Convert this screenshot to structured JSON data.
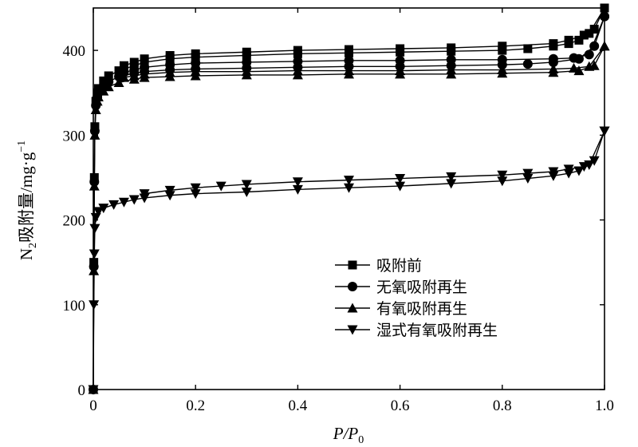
{
  "chart_data": {
    "type": "line",
    "title": "",
    "xlabel": "P/P",
    "xlabel_sub": "0",
    "ylabel": "N",
    "ylabel_sub": "2",
    "ylabel_rest": "吸附量/mg·g",
    "ylabel_sup": "−1",
    "xlim": [
      0,
      1.0
    ],
    "ylim": [
      0,
      450
    ],
    "xticks": [
      0,
      0.2,
      0.4,
      0.6,
      0.8,
      1.0
    ],
    "xtick_labels": [
      "0",
      "0.2",
      "0.4",
      "0.6",
      "0.8",
      "1.0"
    ],
    "yticks": [
      0,
      100,
      200,
      300,
      400
    ],
    "ytick_labels": [
      "0",
      "100",
      "200",
      "300",
      "400"
    ],
    "grid": false,
    "legend_position": "lower-right",
    "series": [
      {
        "name": "吸附前",
        "marker": "square",
        "adsorption": [
          [
            0.0,
            0
          ],
          [
            0.001,
            150
          ],
          [
            0.002,
            250
          ],
          [
            0.003,
            310
          ],
          [
            0.005,
            340
          ],
          [
            0.008,
            350
          ],
          [
            0.01,
            355
          ],
          [
            0.02,
            364
          ],
          [
            0.03,
            370
          ],
          [
            0.05,
            376
          ],
          [
            0.08,
            382
          ],
          [
            0.1,
            386
          ],
          [
            0.15,
            390
          ],
          [
            0.2,
            392
          ],
          [
            0.3,
            394
          ],
          [
            0.4,
            396
          ],
          [
            0.5,
            397
          ],
          [
            0.6,
            398
          ],
          [
            0.7,
            399
          ],
          [
            0.8,
            400
          ],
          [
            0.85,
            402
          ],
          [
            0.9,
            405
          ],
          [
            0.93,
            408
          ],
          [
            0.95,
            412
          ],
          [
            0.97,
            420
          ],
          [
            1.0,
            450
          ]
        ],
        "desorption": [
          [
            1.0,
            450
          ],
          [
            0.98,
            425
          ],
          [
            0.96,
            418
          ],
          [
            0.93,
            412
          ],
          [
            0.9,
            408
          ],
          [
            0.8,
            405
          ],
          [
            0.7,
            403
          ],
          [
            0.6,
            402
          ],
          [
            0.5,
            401
          ],
          [
            0.4,
            400
          ],
          [
            0.3,
            398
          ],
          [
            0.2,
            396
          ],
          [
            0.15,
            394
          ],
          [
            0.1,
            390
          ],
          [
            0.08,
            386
          ],
          [
            0.06,
            382
          ]
        ]
      },
      {
        "name": "无氧吸附再生",
        "marker": "circle",
        "adsorption": [
          [
            0.0,
            0
          ],
          [
            0.001,
            145
          ],
          [
            0.002,
            245
          ],
          [
            0.003,
            305
          ],
          [
            0.005,
            335
          ],
          [
            0.008,
            345
          ],
          [
            0.01,
            350
          ],
          [
            0.02,
            358
          ],
          [
            0.03,
            363
          ],
          [
            0.05,
            369
          ],
          [
            0.08,
            373
          ],
          [
            0.1,
            375
          ],
          [
            0.15,
            377
          ],
          [
            0.2,
            378
          ],
          [
            0.3,
            379
          ],
          [
            0.4,
            380
          ],
          [
            0.5,
            381
          ],
          [
            0.6,
            381
          ],
          [
            0.7,
            382
          ],
          [
            0.8,
            383
          ],
          [
            0.85,
            384
          ],
          [
            0.9,
            386
          ],
          [
            0.95,
            390
          ],
          [
            0.98,
            405
          ],
          [
            1.0,
            440
          ]
        ],
        "desorption": [
          [
            1.0,
            440
          ],
          [
            0.97,
            395
          ],
          [
            0.94,
            391
          ],
          [
            0.9,
            390
          ],
          [
            0.8,
            389
          ],
          [
            0.7,
            389
          ],
          [
            0.6,
            388
          ],
          [
            0.5,
            388
          ],
          [
            0.4,
            387
          ],
          [
            0.3,
            386
          ],
          [
            0.2,
            385
          ],
          [
            0.15,
            383
          ],
          [
            0.1,
            380
          ],
          [
            0.08,
            377
          ],
          [
            0.06,
            374
          ]
        ]
      },
      {
        "name": "有氧吸附再生",
        "marker": "triangle-up",
        "adsorption": [
          [
            0.0,
            0
          ],
          [
            0.001,
            140
          ],
          [
            0.002,
            240
          ],
          [
            0.003,
            300
          ],
          [
            0.005,
            330
          ],
          [
            0.008,
            340
          ],
          [
            0.01,
            345
          ],
          [
            0.02,
            352
          ],
          [
            0.03,
            357
          ],
          [
            0.05,
            362
          ],
          [
            0.08,
            366
          ],
          [
            0.1,
            368
          ],
          [
            0.15,
            369
          ],
          [
            0.2,
            370
          ],
          [
            0.3,
            371
          ],
          [
            0.4,
            371
          ],
          [
            0.5,
            372
          ],
          [
            0.6,
            372
          ],
          [
            0.7,
            372
          ],
          [
            0.8,
            373
          ],
          [
            0.9,
            374
          ],
          [
            0.95,
            376
          ],
          [
            0.98,
            382
          ],
          [
            1.0,
            405
          ]
        ],
        "desorption": [
          [
            1.0,
            405
          ],
          [
            0.97,
            381
          ],
          [
            0.94,
            379
          ],
          [
            0.9,
            378
          ],
          [
            0.8,
            377
          ],
          [
            0.7,
            377
          ],
          [
            0.6,
            376
          ],
          [
            0.5,
            376
          ],
          [
            0.4,
            376
          ],
          [
            0.3,
            375
          ],
          [
            0.2,
            375
          ],
          [
            0.15,
            374
          ],
          [
            0.1,
            372
          ],
          [
            0.08,
            370
          ],
          [
            0.06,
            368
          ]
        ]
      },
      {
        "name": "湿式有氧吸附再生",
        "marker": "triangle-down",
        "adsorption": [
          [
            0.0,
            0
          ],
          [
            0.001,
            100
          ],
          [
            0.002,
            160
          ],
          [
            0.003,
            190
          ],
          [
            0.005,
            203
          ],
          [
            0.01,
            210
          ],
          [
            0.02,
            214
          ],
          [
            0.04,
            218
          ],
          [
            0.06,
            221
          ],
          [
            0.08,
            224
          ],
          [
            0.1,
            226
          ],
          [
            0.15,
            229
          ],
          [
            0.2,
            231
          ],
          [
            0.3,
            233
          ],
          [
            0.4,
            236
          ],
          [
            0.5,
            238
          ],
          [
            0.6,
            240
          ],
          [
            0.7,
            243
          ],
          [
            0.8,
            246
          ],
          [
            0.85,
            249
          ],
          [
            0.9,
            252
          ],
          [
            0.93,
            255
          ],
          [
            0.95,
            258
          ],
          [
            0.97,
            265
          ],
          [
            1.0,
            305
          ]
        ],
        "desorption": [
          [
            1.0,
            305
          ],
          [
            0.98,
            270
          ],
          [
            0.96,
            263
          ],
          [
            0.93,
            260
          ],
          [
            0.9,
            257
          ],
          [
            0.85,
            255
          ],
          [
            0.8,
            253
          ],
          [
            0.7,
            251
          ],
          [
            0.6,
            249
          ],
          [
            0.5,
            247
          ],
          [
            0.4,
            245
          ],
          [
            0.3,
            242
          ],
          [
            0.25,
            240
          ],
          [
            0.2,
            238
          ],
          [
            0.15,
            235
          ],
          [
            0.1,
            231
          ]
        ]
      }
    ]
  }
}
